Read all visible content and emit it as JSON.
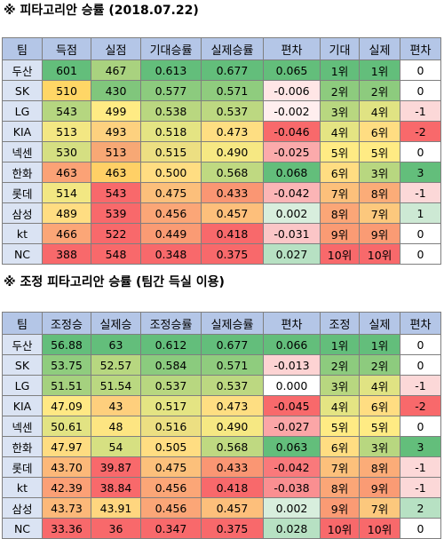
{
  "sections": [
    {
      "title": "※ 피타고리안 승률 (2018.07.22)",
      "headers": [
        "팀",
        "득점",
        "실점",
        "기대승률",
        "실제승률",
        "편차",
        "기대",
        "실제",
        "편차"
      ],
      "rows": [
        [
          "두산",
          "601",
          "467",
          "0.613",
          "0.677",
          "0.065",
          "1위",
          "1위",
          "0"
        ],
        [
          "SK",
          "510",
          "430",
          "0.577",
          "0.571",
          "-0.006",
          "2위",
          "2위",
          "0"
        ],
        [
          "LG",
          "543",
          "499",
          "0.538",
          "0.537",
          "-0.002",
          "3위",
          "4위",
          "-1"
        ],
        [
          "KIA",
          "513",
          "493",
          "0.518",
          "0.473",
          "-0.046",
          "4위",
          "6위",
          "-2"
        ],
        [
          "넥센",
          "530",
          "513",
          "0.515",
          "0.490",
          "-0.025",
          "5위",
          "5위",
          "0"
        ],
        [
          "한화",
          "463",
          "463",
          "0.500",
          "0.568",
          "0.068",
          "6위",
          "3위",
          "3"
        ],
        [
          "롯데",
          "514",
          "543",
          "0.475",
          "0.433",
          "-0.042",
          "7위",
          "8위",
          "-1"
        ],
        [
          "삼성",
          "489",
          "539",
          "0.456",
          "0.457",
          "0.002",
          "8위",
          "7위",
          "1"
        ],
        [
          "kt",
          "466",
          "522",
          "0.449",
          "0.418",
          "-0.031",
          "9위",
          "9위",
          "0"
        ],
        [
          "NC",
          "388",
          "548",
          "0.348",
          "0.375",
          "0.027",
          "10위",
          "10위",
          "0"
        ]
      ],
      "colors": [
        [
          "#dae3f3",
          "#63be7b",
          "#a9d27f",
          "#63be7b",
          "#63be7b",
          "#63be7b",
          "#63be7b",
          "#63be7b",
          "#ffffff"
        ],
        [
          "#dae3f3",
          "#ffd666",
          "#80c67c",
          "#8ccb7e",
          "#8fcc7e",
          "#ffe6e6",
          "#8dcb7e",
          "#8dcb7e",
          "#ffffff"
        ],
        [
          "#dae3f3",
          "#b5d680",
          "#ffeb84",
          "#b9d780",
          "#bcd881",
          "#ffeeee",
          "#b8d780",
          "#e0e383",
          "#fcd8d8"
        ],
        [
          "#dae3f3",
          "#f3e783",
          "#fdd17f",
          "#e4e483",
          "#fede82",
          "#f8696b",
          "#e4e483",
          "#ffdd82",
          "#f8696b"
        ],
        [
          "#dae3f3",
          "#d5df82",
          "#f7a875",
          "#ecdf82",
          "#f6e883",
          "#fbaaab",
          "#ffeb84",
          "#ffeb84",
          "#ffffff"
        ],
        [
          "#dae3f3",
          "#fba276",
          "#ffd066",
          "#ffdd82",
          "#bfd981",
          "#63be7b",
          "#ffdd82",
          "#b8d780",
          "#63be7b"
        ],
        [
          "#dae3f3",
          "#f2e783",
          "#f8696b",
          "#fcbf7b",
          "#fa9673",
          "#fbb5b6",
          "#fcc07b",
          "#fbac78",
          "#fcd8d8"
        ],
        [
          "#dae3f3",
          "#ffdd82",
          "#f8696b",
          "#fba677",
          "#fdbf7b",
          "#d8eedd",
          "#fba677",
          "#fcc87d",
          "#cde9d4"
        ],
        [
          "#dae3f3",
          "#fba677",
          "#f8696b",
          "#fa9b74",
          "#f8696b",
          "#fbc6c7",
          "#fa9b74",
          "#fa9b74",
          "#ffffff"
        ],
        [
          "#dae3f3",
          "#f8696b",
          "#f8696b",
          "#f8696b",
          "#f8696b",
          "#b7e1c3",
          "#f8696b",
          "#f8696b",
          "#ffffff"
        ]
      ]
    },
    {
      "title": "※ 조정 피타고리안 승률 (팀간 득실 이용)",
      "headers": [
        "팀",
        "조정승",
        "실제승",
        "조정승률",
        "실제승률",
        "편차",
        "조정",
        "실제",
        "편차"
      ],
      "rows": [
        [
          "두산",
          "56.88",
          "63",
          "0.612",
          "0.677",
          "0.066",
          "1위",
          "1위",
          "0"
        ],
        [
          "SK",
          "53.75",
          "52.57",
          "0.584",
          "0.571",
          "-0.013",
          "2위",
          "2위",
          "0"
        ],
        [
          "LG",
          "51.51",
          "51.54",
          "0.537",
          "0.537",
          "0.000",
          "3위",
          "4위",
          "-1"
        ],
        [
          "KIA",
          "47.09",
          "43",
          "0.517",
          "0.473",
          "-0.045",
          "4위",
          "6위",
          "-2"
        ],
        [
          "넥센",
          "50.61",
          "48",
          "0.516",
          "0.490",
          "-0.027",
          "5위",
          "5위",
          "0"
        ],
        [
          "한화",
          "47.97",
          "54",
          "0.505",
          "0.568",
          "0.063",
          "6위",
          "3위",
          "3"
        ],
        [
          "롯데",
          "43.70",
          "39.87",
          "0.475",
          "0.433",
          "-0.042",
          "7위",
          "8위",
          "-1"
        ],
        [
          "kt",
          "42.39",
          "38.84",
          "0.456",
          "0.418",
          "-0.038",
          "8위",
          "9위",
          "-1"
        ],
        [
          "삼성",
          "43.73",
          "43.91",
          "0.456",
          "0.457",
          "0.002",
          "9위",
          "7위",
          "2"
        ],
        [
          "NC",
          "33.36",
          "36",
          "0.347",
          "0.375",
          "0.028",
          "10위",
          "10위",
          "0"
        ]
      ],
      "colors": [
        [
          "#dae3f3",
          "#63be7b",
          "#63be7b",
          "#63be7b",
          "#63be7b",
          "#63be7b",
          "#63be7b",
          "#63be7b",
          "#ffffff"
        ],
        [
          "#dae3f3",
          "#8fcc7e",
          "#b7d780",
          "#8bcb7e",
          "#8fcc7e",
          "#fdd3d3",
          "#8dcb7e",
          "#8dcb7e",
          "#ffffff"
        ],
        [
          "#dae3f3",
          "#a5d17f",
          "#bad881",
          "#b8d780",
          "#bcd881",
          "#ffffff",
          "#b8d780",
          "#e0e383",
          "#fcd8d8"
        ],
        [
          "#dae3f3",
          "#ffe884",
          "#fecf7d",
          "#e4e483",
          "#fede82",
          "#f8696b",
          "#e4e483",
          "#ffdd82",
          "#f8696b"
        ],
        [
          "#dae3f3",
          "#e2e383",
          "#fde582",
          "#ecdf82",
          "#f6e883",
          "#fba6a7",
          "#ffeb84",
          "#ffeb84",
          "#ffffff"
        ],
        [
          "#dae3f3",
          "#fedc81",
          "#d6e082",
          "#ffdd82",
          "#bfd981",
          "#63be7b",
          "#ffdd82",
          "#b8d780",
          "#63be7b"
        ],
        [
          "#dae3f3",
          "#fcb879",
          "#f8696b",
          "#fcc07b",
          "#fa9673",
          "#f9797b",
          "#fcc07b",
          "#fbac78",
          "#fcd8d8"
        ],
        [
          "#dae3f3",
          "#fba076",
          "#f8696b",
          "#fba677",
          "#f8696b",
          "#fa8f91",
          "#fba677",
          "#fa9b74",
          "#fcd8d8"
        ],
        [
          "#dae3f3",
          "#fcb879",
          "#ffd67f",
          "#fba677",
          "#fdbf7b",
          "#d8eedd",
          "#fa9b74",
          "#fcc87d",
          "#b7e1c3"
        ],
        [
          "#dae3f3",
          "#f8696b",
          "#f8696b",
          "#f8696b",
          "#f8696b",
          "#b7e1c3",
          "#f8696b",
          "#f8696b",
          "#ffffff"
        ]
      ]
    }
  ]
}
